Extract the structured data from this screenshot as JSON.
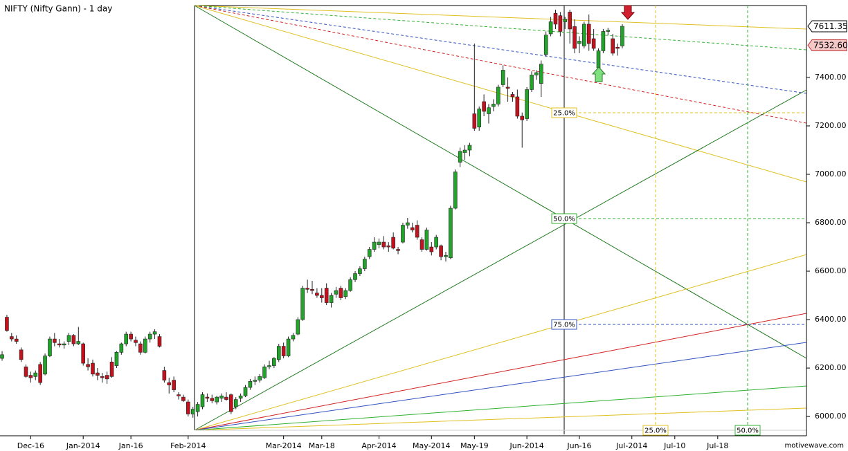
{
  "chart_data": {
    "type": "candlestick",
    "title": "NIFTY (Nifty Gann) - 1 day",
    "watermark": "motivewave.com",
    "up_color": "#22a32a",
    "down_color": "#c2121e",
    "open": [
      6240,
      6410,
      6330,
      6320,
      6275,
      6205,
      6170,
      6165,
      6215,
      6175,
      6250,
      6320,
      6300,
      6295,
      6310,
      6335,
      6300,
      6300,
      6215,
      6220,
      6180,
      6165,
      6170,
      6225,
      6210,
      6265,
      6300,
      6340,
      6315,
      6300,
      6265,
      6320,
      6340,
      6330,
      6190,
      6140,
      6150,
      6090,
      6080,
      6060,
      6010,
      6020,
      6040,
      6080,
      6075,
      6060,
      6075,
      6080,
      6090,
      6040,
      6075,
      6085,
      6120,
      6145,
      6150,
      6160,
      6205,
      6210,
      6235,
      6290,
      6250,
      6320,
      6340,
      6400,
      6530,
      6525,
      6510,
      6500,
      6530,
      6470,
      6505,
      6530,
      6495,
      6520,
      6565,
      6590,
      6610,
      6660,
      6690,
      6710,
      6720,
      6705,
      6740,
      6690,
      6720,
      6790,
      6780,
      6790,
      6730,
      6690,
      6700,
      6700,
      6705,
      6660,
      6655,
      6860,
      7050,
      7090,
      7100,
      7250,
      7195,
      7300,
      7250,
      7280,
      7290,
      7370,
      7360,
      7330,
      7320,
      7240,
      7230,
      7350,
      7410,
      7375,
      7495,
      7580,
      7665,
      7655,
      7630,
      7670,
      7610,
      7540,
      7530,
      7620,
      7560,
      7440,
      7510,
      7590,
      7560,
      7525,
      7530
    ],
    "high": [
      6270,
      6420,
      6345,
      6335,
      6285,
      6215,
      6185,
      6190,
      6225,
      6260,
      6330,
      6345,
      6320,
      6310,
      6345,
      6340,
      6370,
      6305,
      6240,
      6235,
      6200,
      6180,
      6185,
      6245,
      6270,
      6305,
      6350,
      6350,
      6330,
      6310,
      6330,
      6350,
      6360,
      6340,
      6205,
      6160,
      6165,
      6100,
      6090,
      6070,
      6040,
      6060,
      6100,
      6095,
      6090,
      6085,
      6095,
      6100,
      6095,
      6080,
      6095,
      6130,
      6155,
      6165,
      6175,
      6215,
      6230,
      6245,
      6300,
      6305,
      6330,
      6345,
      6410,
      6540,
      6565,
      6560,
      6530,
      6530,
      6550,
      6510,
      6535,
      6540,
      6530,
      6575,
      6600,
      6620,
      6660,
      6700,
      6740,
      6735,
      6745,
      6720,
      6760,
      6700,
      6800,
      6820,
      6800,
      6810,
      6740,
      6780,
      6720,
      6750,
      6710,
      6680,
      6870,
      7020,
      7110,
      7120,
      7130,
      7540,
      7280,
      7330,
      7290,
      7310,
      7370,
      7450,
      7400,
      7340,
      7350,
      7255,
      7360,
      7425,
      7430,
      7470,
      7590,
      7650,
      7680,
      7670,
      7650,
      7680,
      7640,
      7570,
      7630,
      7660,
      7600,
      7520,
      7600,
      7605,
      7580,
      7540,
      7620
    ],
    "low": [
      6230,
      6350,
      6310,
      6300,
      6225,
      6160,
      6140,
      6150,
      6130,
      6170,
      6245,
      6290,
      6285,
      6280,
      6295,
      6290,
      6295,
      6210,
      6190,
      6165,
      6150,
      6140,
      6135,
      6160,
      6200,
      6255,
      6290,
      6310,
      6290,
      6255,
      6260,
      6305,
      6320,
      6285,
      6140,
      6095,
      6100,
      6070,
      6060,
      6000,
      5995,
      6000,
      6030,
      6060,
      6055,
      6050,
      6060,
      6065,
      6010,
      6030,
      6060,
      6080,
      6110,
      6130,
      6140,
      6155,
      6195,
      6200,
      6225,
      6240,
      6245,
      6310,
      6335,
      6395,
      6510,
      6505,
      6490,
      6470,
      6460,
      6450,
      6490,
      6480,
      6485,
      6515,
      6555,
      6580,
      6600,
      6650,
      6680,
      6695,
      6690,
      6680,
      6690,
      6670,
      6715,
      6775,
      6760,
      6730,
      6680,
      6685,
      6665,
      6690,
      6645,
      6640,
      6650,
      6855,
      7030,
      7060,
      7075,
      7180,
      7180,
      7240,
      7210,
      7260,
      7280,
      7360,
      7300,
      7300,
      7230,
      7110,
      7220,
      7340,
      7390,
      7320,
      7485,
      7570,
      7600,
      7570,
      7600,
      7540,
      7500,
      7500,
      7520,
      7510,
      7510,
      7430,
      7500,
      7575,
      7490,
      7490,
      7520
    ],
    "close": [
      6255,
      6355,
      6320,
      6310,
      6235,
      6165,
      6160,
      6180,
      6140,
      6250,
      6320,
      6305,
      6295,
      6300,
      6335,
      6300,
      6310,
      6220,
      6205,
      6175,
      6170,
      6160,
      6155,
      6165,
      6265,
      6300,
      6340,
      6320,
      6305,
      6265,
      6320,
      6340,
      6350,
      6290,
      6150,
      6130,
      6110,
      6085,
      6065,
      6010,
      6030,
      6050,
      6090,
      6075,
      6065,
      6080,
      6085,
      6070,
      6020,
      6070,
      6085,
      6120,
      6145,
      6150,
      6165,
      6205,
      6210,
      6240,
      6290,
      6250,
      6320,
      6335,
      6400,
      6530,
      6525,
      6520,
      6500,
      6490,
      6470,
      6500,
      6520,
      6490,
      6520,
      6565,
      6590,
      6610,
      6650,
      6690,
      6720,
      6720,
      6700,
      6700,
      6695,
      6685,
      6790,
      6800,
      6770,
      6740,
      6690,
      6770,
      6680,
      6740,
      6660,
      6665,
      6860,
      7010,
      7095,
      7100,
      7120,
      7190,
      7270,
      7260,
      7275,
      7290,
      7360,
      7430,
      7355,
      7320,
      7240,
      7225,
      7350,
      7410,
      7420,
      7455,
      7575,
      7630,
      7620,
      7590,
      7640,
      7600,
      7520,
      7550,
      7620,
      7540,
      7520,
      7510,
      7590,
      7595,
      7500,
      7520,
      7611.35
    ],
    "price_labels": [
      {
        "value": 7611.35,
        "label": "7611.35"
      },
      {
        "value": 7532.6,
        "label": "7532.60"
      }
    ],
    "fan_levels": [
      "25.0%",
      "50.0%",
      "75.0%"
    ],
    "time_levels": [
      "25.0%",
      "50.0%"
    ],
    "xlim": [
      -0.44,
      168.6
    ],
    "xticks": [
      {
        "value": 6,
        "label": "Dec-16"
      },
      {
        "value": 17,
        "label": "Jan-2014"
      },
      {
        "value": 27,
        "label": "Jan-16"
      },
      {
        "value": 39,
        "label": "Feb-2014"
      },
      {
        "value": 59,
        "label": "Mar-2014"
      },
      {
        "value": 67,
        "label": "Mar-18"
      },
      {
        "value": 79,
        "label": "Apr-2014"
      },
      {
        "value": 90,
        "label": "May-2014"
      },
      {
        "value": 99,
        "label": "May-19"
      },
      {
        "value": 110,
        "label": "Jun-2014"
      },
      {
        "value": 121,
        "label": "Jun-16"
      },
      {
        "value": 132,
        "label": "Jul-2014"
      },
      {
        "value": 141,
        "label": "Jul-10"
      },
      {
        "value": 150,
        "label": "Jul-18"
      }
    ],
    "ylim": [
      5926,
      7697
    ],
    "yticks": [
      {
        "value": 6000,
        "label": "6000.00"
      },
      {
        "value": 6200,
        "label": "6200.00"
      },
      {
        "value": 6400,
        "label": "6400.00"
      },
      {
        "value": 6600,
        "label": "6600.00"
      },
      {
        "value": 6800,
        "label": "6800.00"
      },
      {
        "value": 7000,
        "label": "7000.00"
      },
      {
        "value": 7200,
        "label": "7200.00"
      },
      {
        "value": 7400,
        "label": "7400.00"
      }
    ]
  }
}
